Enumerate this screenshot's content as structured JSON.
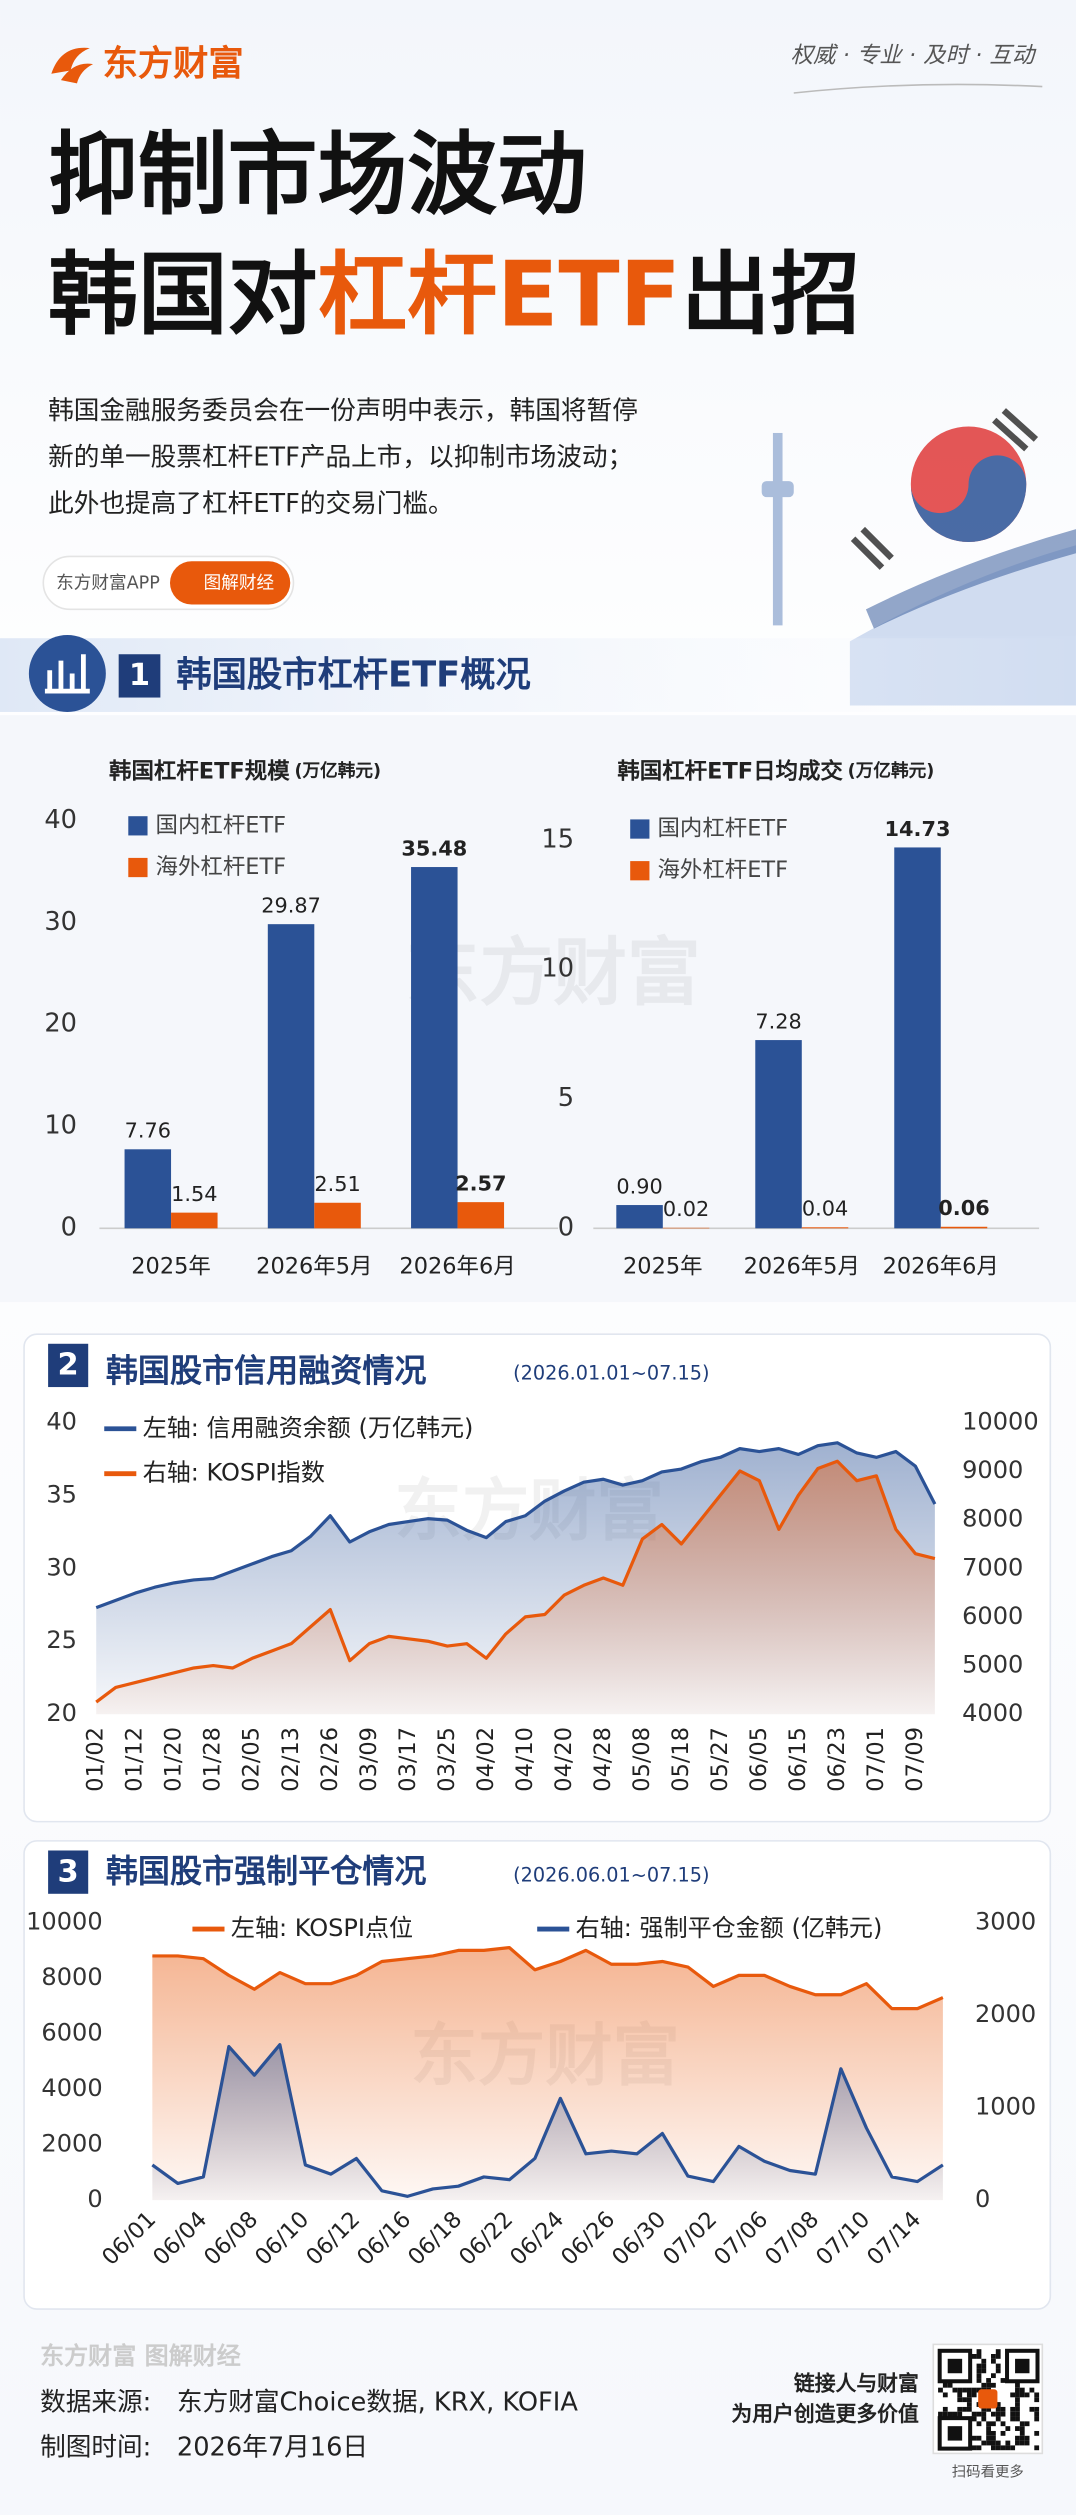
{
  "header": {
    "logo": "东方财富",
    "tagline": "权威 · 专业 · 及时 · 互动",
    "title_line1": "抑制市场波动",
    "title_line2_prefix": "韩国对",
    "title_line2_highlight": "杠杆ETF",
    "title_line2_suffix": "出招",
    "description": [
      "韩国金融服务委员会在一份声明中表示，韩国将暂停",
      "新的单一股票杠杆ETF产品上市，以抑制市场波动；",
      "此外也提高了杠杆ETF的交易门槛。"
    ],
    "badge_app": "东方财富APP",
    "badge_tag": "图解财经"
  },
  "watermark": "东方财富",
  "sections": [
    {
      "number": "1",
      "title": "韩国股市杠杆ETF概况"
    },
    {
      "number": "2",
      "title": "韩国股市信用融资情况",
      "subtitle": "(2026.01.01~07.15)"
    },
    {
      "number": "3",
      "title": "韩国股市强制平仓情况",
      "subtitle": "(2026.06.01~07.15)"
    }
  ],
  "chart_data": [
    {
      "type": "bar",
      "title": "韩国杠杆ETF规模",
      "unit": "(万亿韩元)",
      "categories": [
        "2025年",
        "2026年5月",
        "2026年6月"
      ],
      "series": [
        {
          "name": "国内杠杆ETF",
          "color": "#2b5296",
          "values": [
            7.76,
            29.87,
            35.48
          ]
        },
        {
          "name": "海外杠杆ETF",
          "color": "#e8590c",
          "values": [
            1.54,
            2.51,
            2.57
          ]
        }
      ],
      "ylim": [
        0,
        40
      ],
      "yticks": [
        0,
        10,
        20,
        30,
        40
      ]
    },
    {
      "type": "bar",
      "title": "韩国杠杆ETF日均成交",
      "unit": "(万亿韩元)",
      "categories": [
        "2025年",
        "2026年5月",
        "2026年6月"
      ],
      "series": [
        {
          "name": "国内杠杆ETF",
          "color": "#2b5296",
          "values": [
            0.9,
            7.28,
            14.73
          ],
          "value_labels": [
            "0.90",
            "7.28",
            "14.73"
          ]
        },
        {
          "name": "海外杠杆ETF",
          "color": "#e8590c",
          "values": [
            0.02,
            0.04,
            0.06
          ]
        }
      ],
      "ylim": [
        0,
        16
      ],
      "yticks": [
        0,
        5,
        10,
        15
      ]
    },
    {
      "type": "line",
      "area": true,
      "categories": [
        "01/02",
        null,
        "01/12",
        null,
        "01/20",
        null,
        "01/28",
        null,
        "02/05",
        null,
        "02/13",
        null,
        "02/26",
        null,
        "03/09",
        null,
        "03/17",
        null,
        "03/25",
        null,
        "04/02",
        null,
        "04/10",
        null,
        "04/20",
        null,
        "04/28",
        null,
        "05/08",
        null,
        "05/18",
        null,
        "05/27",
        null,
        "06/05",
        null,
        "06/15",
        null,
        "06/23",
        null,
        "07/01",
        null,
        "07/09",
        null
      ],
      "series": [
        {
          "name": "左轴: 信用融资余额 (万亿韩元)",
          "color": "#2b5296",
          "axis": "y",
          "values": [
            27.3,
            27.8,
            28.3,
            28.7,
            29.0,
            29.2,
            29.3,
            29.8,
            30.3,
            30.8,
            31.2,
            32.2,
            33.6,
            31.8,
            32.5,
            33.0,
            33.2,
            33.4,
            33.3,
            32.6,
            32.1,
            33.2,
            33.6,
            34.6,
            35.3,
            35.9,
            36.1,
            35.7,
            36.0,
            36.6,
            36.8,
            37.3,
            37.6,
            38.2,
            38.0,
            38.2,
            37.8,
            38.4,
            38.6,
            37.9,
            37.6,
            38.0,
            37.0,
            34.4
          ]
        },
        {
          "name": "右轴: KOSPI指数",
          "color": "#e8590c",
          "axis": "y2",
          "values": [
            4250,
            4550,
            4650,
            4750,
            4850,
            4950,
            5000,
            4950,
            5150,
            5300,
            5450,
            5800,
            6150,
            5100,
            5450,
            5600,
            5550,
            5500,
            5400,
            5450,
            5150,
            5650,
            6000,
            6050,
            6450,
            6650,
            6800,
            6650,
            7600,
            7900,
            7500,
            8000,
            8500,
            9000,
            8800,
            7800,
            8500,
            9050,
            9200,
            8800,
            8900,
            7800,
            7300,
            7200
          ]
        }
      ],
      "ylim": [
        20,
        40
      ],
      "yticks": [
        20,
        25,
        30,
        35,
        40
      ],
      "y2lim": [
        4000,
        10000
      ],
      "y2ticks": [
        4000,
        5000,
        6000,
        7000,
        8000,
        9000,
        10000
      ]
    },
    {
      "type": "line",
      "area": true,
      "categories": [
        "06/01",
        null,
        "06/04",
        null,
        "06/08",
        null,
        "06/10",
        null,
        "06/12",
        null,
        "06/16",
        null,
        "06/18",
        null,
        "06/22",
        null,
        "06/24",
        null,
        "06/26",
        null,
        "06/30",
        null,
        "07/02",
        null,
        "07/06",
        null,
        "07/08",
        null,
        "07/10",
        null,
        "07/14",
        null
      ],
      "series": [
        {
          "name": "左轴: KOSPI点位",
          "color": "#e8590c",
          "axis": "y",
          "values": [
            8800,
            8800,
            8700,
            8100,
            7600,
            8200,
            7800,
            7800,
            8100,
            8600,
            8700,
            8800,
            9000,
            9000,
            9100,
            8300,
            8600,
            9000,
            8500,
            8500,
            8600,
            8400,
            7700,
            8100,
            8100,
            7700,
            7400,
            7400,
            7800,
            6900,
            6900,
            7300
          ]
        },
        {
          "name": "右轴: 强制平仓金额 (亿韩元)",
          "color": "#2b5296",
          "axis": "y2",
          "values": [
            380,
            180,
            250,
            1660,
            1350,
            1680,
            380,
            280,
            450,
            100,
            40,
            120,
            150,
            250,
            220,
            450,
            1100,
            500,
            530,
            500,
            720,
            260,
            200,
            580,
            420,
            320,
            280,
            1420,
            780,
            250,
            200,
            380
          ]
        }
      ],
      "ylim": [
        0,
        10000
      ],
      "yticks": [
        0,
        2000,
        4000,
        6000,
        8000,
        10000
      ],
      "y2lim": [
        0,
        3000
      ],
      "y2ticks": [
        0,
        1000,
        2000,
        3000
      ]
    }
  ],
  "footer": {
    "brand": "东方财富 图解财经",
    "source": "数据来源:　东方财富Choice数据, KRX, KOFIA",
    "date": "制图时间:　2026年7月16日",
    "slogan1": "链接人与财富",
    "slogan2": "为用户创造更多价值",
    "qr_caption": "扫码看更多"
  }
}
